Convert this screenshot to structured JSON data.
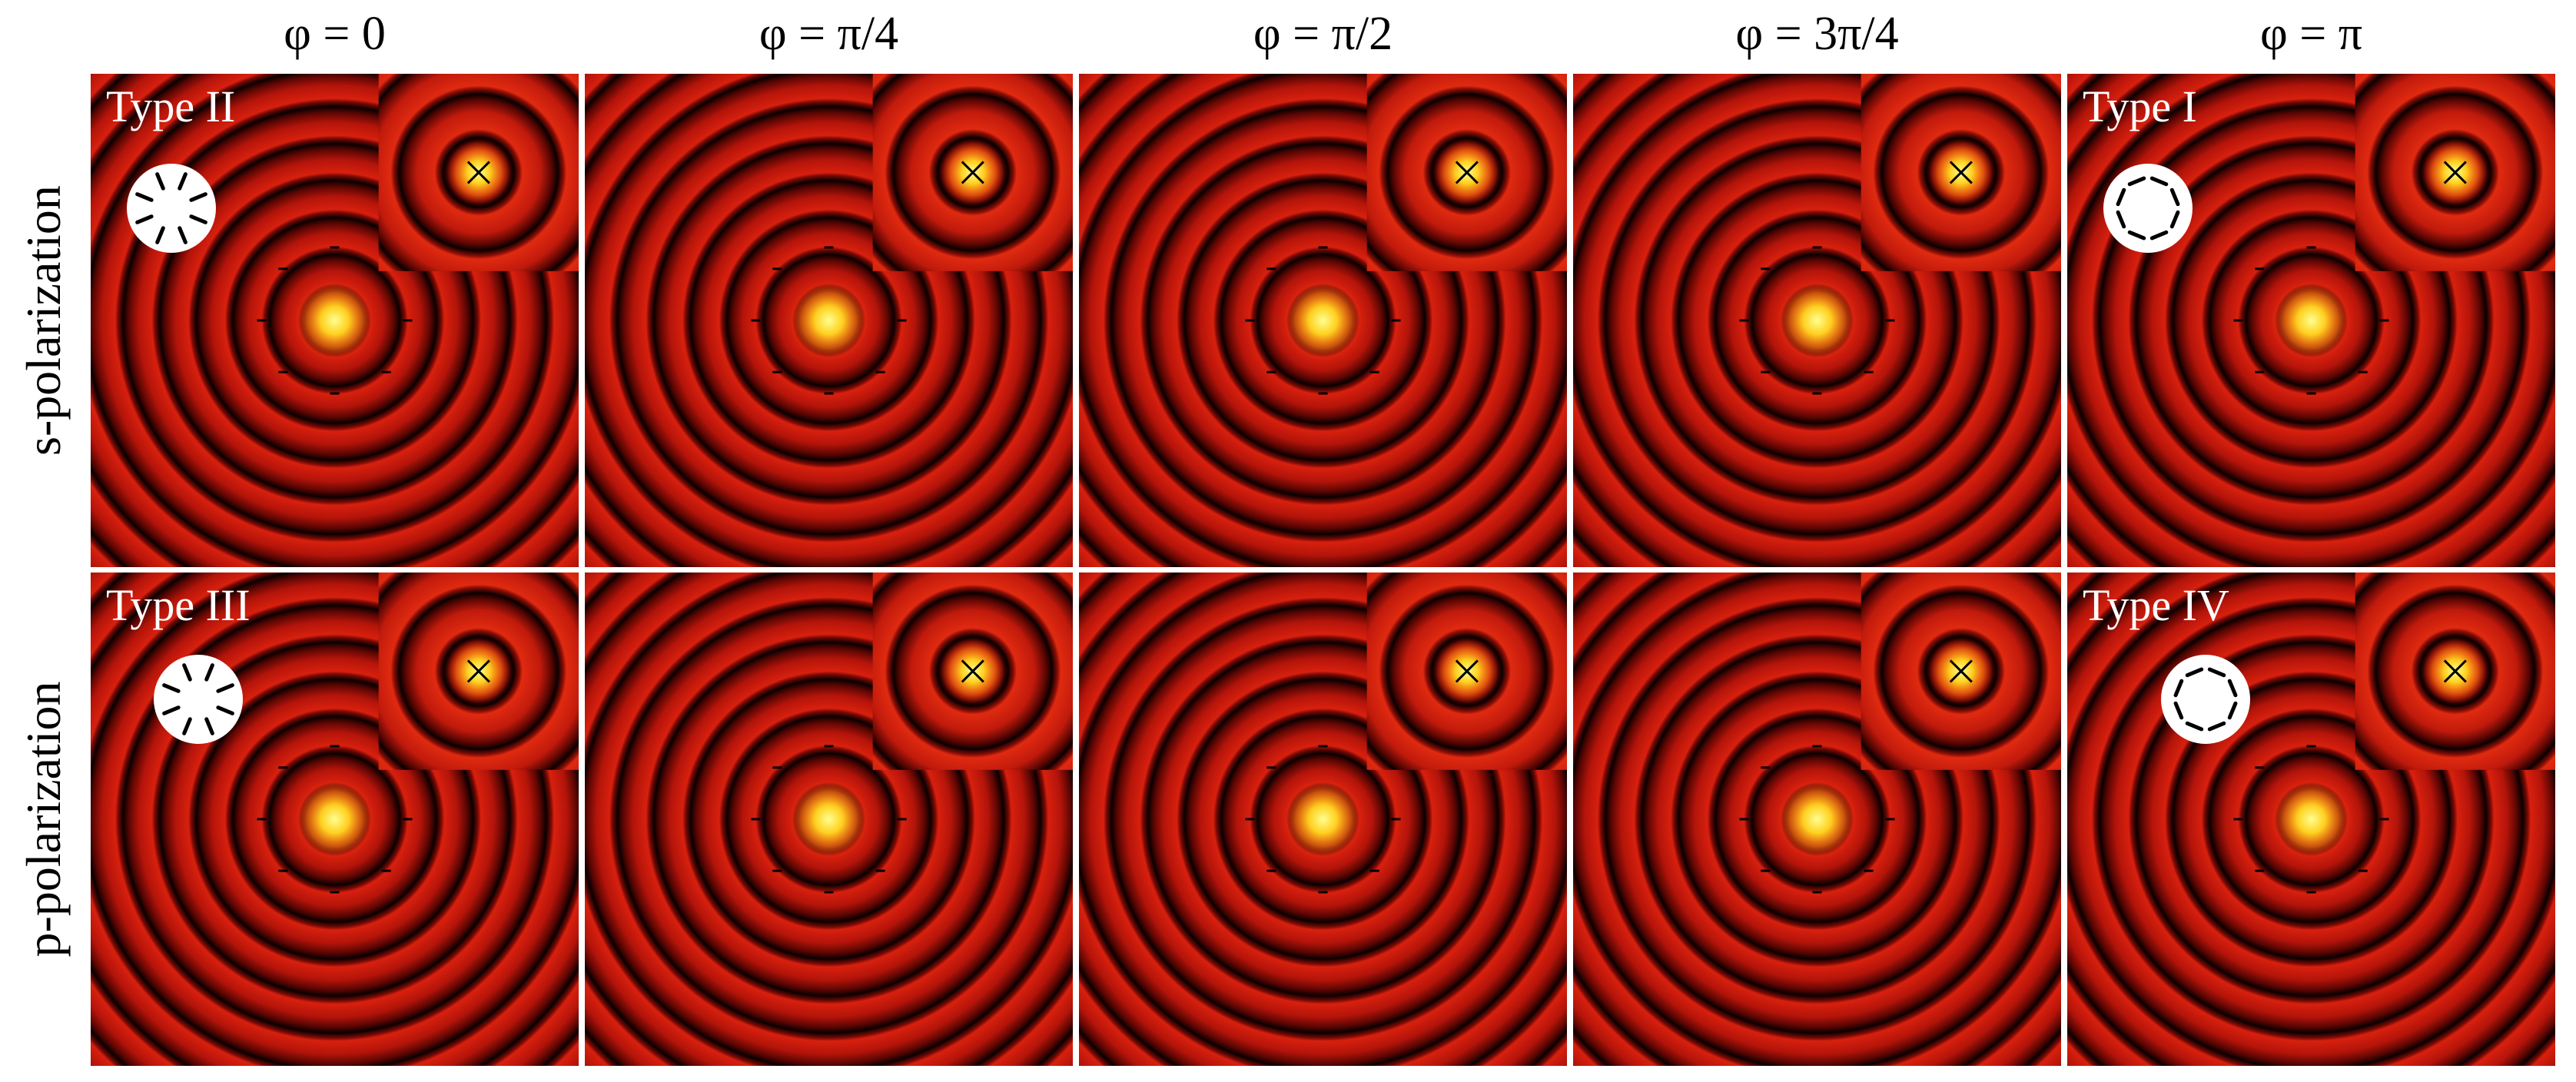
{
  "columns": [
    "φ = 0",
    "φ = π/4",
    "φ = π/2",
    "φ = 3π/4",
    "φ = π"
  ],
  "rows": [
    {
      "label": "s-polarization",
      "types": [
        "Type II",
        null,
        null,
        null,
        "Type I"
      ]
    },
    {
      "label": "p-polarization",
      "types": [
        "Type III",
        null,
        null,
        null,
        "Type IV"
      ]
    }
  ]
}
